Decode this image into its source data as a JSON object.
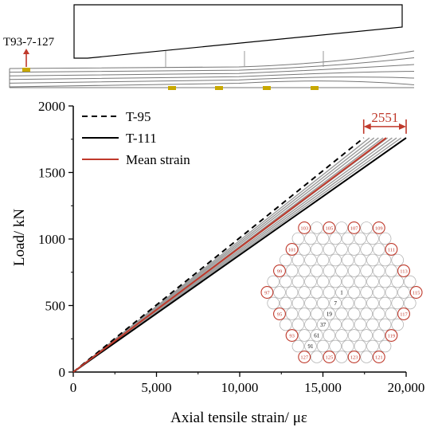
{
  "colors": {
    "mean": "#c0392b",
    "gray": "#9a9a9a",
    "black": "#000000",
    "gauge": "#c8a800",
    "highlight": "#c0392b"
  },
  "top_diagram": {
    "label": "T93-7-127"
  },
  "chart_data": {
    "type": "line",
    "xlabel": "Axial tensile strain/ με",
    "ylabel": "Load/ kN",
    "xlim": [
      0,
      20000
    ],
    "ylim": [
      0,
      2000
    ],
    "xticks": [
      0,
      5000,
      10000,
      15000,
      20000
    ],
    "xtick_labels": [
      "0",
      "5,000",
      "10,000",
      "15,000",
      "20,000"
    ],
    "yticks": [
      0,
      500,
      1000,
      1500,
      2000
    ],
    "ytick_labels": [
      "0",
      "500",
      "1000",
      "1500",
      "2000"
    ],
    "legend_position": "top-left",
    "series": [
      {
        "name": "T-95",
        "style": "dashed",
        "color": "#000000",
        "x": [
          0,
          17450
        ],
        "y": [
          0,
          1760
        ]
      },
      {
        "name": "T-111",
        "style": "solid",
        "color": "#000000",
        "x": [
          0,
          20000
        ],
        "y": [
          0,
          1760
        ]
      },
      {
        "name": "Mean strain",
        "style": "solid",
        "color": "#c0392b",
        "x": [
          0,
          18800
        ],
        "y": [
          0,
          1760
        ]
      }
    ],
    "gray_band": {
      "x_end_min": 17800,
      "x_end_max": 19700,
      "y_end": 1760,
      "count": 8
    },
    "annotation": {
      "text": "2551",
      "x_from": 17450,
      "x_to": 20000,
      "y": 1845
    }
  },
  "hex_inset": {
    "highlighted_labels": [
      "103",
      "105",
      "107",
      "109",
      "101",
      "111",
      "99",
      "113",
      "97",
      "115",
      "95",
      "117",
      "93",
      "119",
      "127",
      "125",
      "123",
      "121"
    ],
    "center_labels": [
      "1",
      "7",
      "19",
      "37",
      "61",
      "91"
    ]
  }
}
